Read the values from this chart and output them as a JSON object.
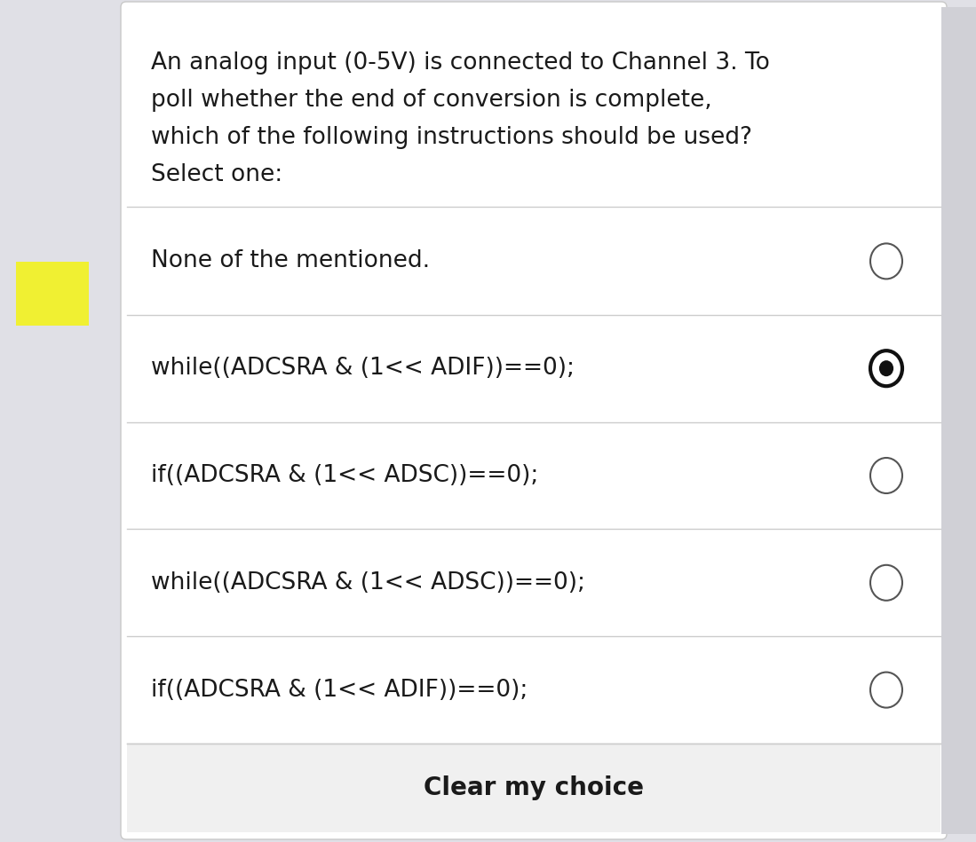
{
  "background_color": "#e0e0e6",
  "card_color": "#ffffff",
  "question_text_lines": [
    "An analog input (0-5V) is connected to Channel 3. To",
    "poll whether the end of conversion is complete,",
    "which of the following instructions should be used?",
    "Select one:"
  ],
  "question_fontsize": 19,
  "question_color": "#1a1a1a",
  "options": [
    {
      "label": "None of the mentioned.",
      "selected": false
    },
    {
      "label": "while((ADCSRA & (1<< ADIF))==0);",
      "selected": true
    },
    {
      "label": "if((ADCSRA & (1<< ADSC))==0);",
      "selected": false
    },
    {
      "label": "while((ADCSRA & (1<< ADSC))==0);",
      "selected": false
    },
    {
      "label": "if((ADCSRA & (1<< ADIF))==0);",
      "selected": false
    }
  ],
  "option_fontsize": 19,
  "option_text_color": "#1a1a1a",
  "divider_color": "#cccccc",
  "footer_color": "#f0f0f0",
  "footer_text": "Clear my choice",
  "footer_fontsize": 20,
  "footer_text_color": "#1a1a1a",
  "sticky_note_color": "#f0f032"
}
